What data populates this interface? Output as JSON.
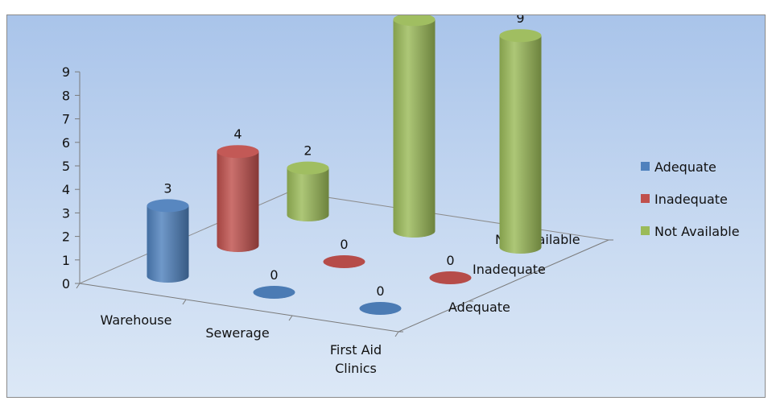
{
  "chart_data": {
    "type": "bar",
    "subtype": "3d-cylinder",
    "categories": [
      "Warehouse",
      "Sewerage",
      "First Aid Clinics"
    ],
    "depth_labels": [
      "Adequate",
      "Inadequate",
      "Not Available"
    ],
    "series": [
      {
        "name": "Adequate",
        "values": [
          3,
          0,
          0
        ],
        "color": "#4f81bd"
      },
      {
        "name": "Inadequate",
        "values": [
          4,
          0,
          0
        ],
        "color": "#c0504d"
      },
      {
        "name": "Not Available",
        "values": [
          2,
          9,
          9
        ],
        "color": "#9bbb59"
      }
    ],
    "y_ticks": [
      "0",
      "1",
      "2",
      "3",
      "4",
      "5",
      "6",
      "7",
      "8",
      "9"
    ],
    "ylim": [
      0,
      9
    ],
    "data_labels": true,
    "legend_position": "right",
    "grid": false
  }
}
